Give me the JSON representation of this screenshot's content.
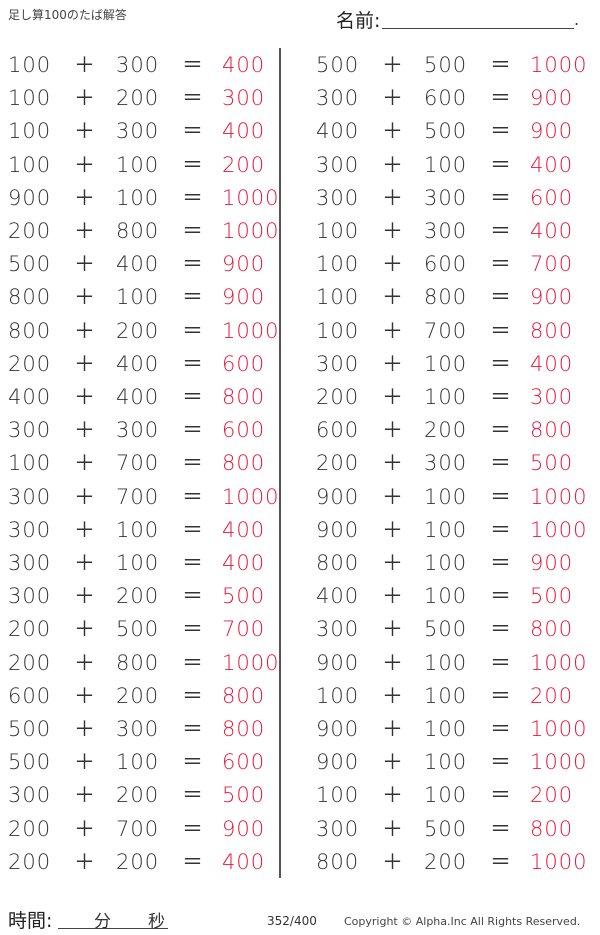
{
  "header": {
    "title": "足し算100のたば解答",
    "name_label": "名前:",
    "name_end": "."
  },
  "footer": {
    "time_label": "時間:",
    "minutes_label": "分",
    "seconds_label": "秒",
    "page": "352/400",
    "copyright": "Copyright ©  Alpha.Inc All Rights Reserved."
  },
  "colors": {
    "answer": "#e8173a",
    "text": "#333333"
  },
  "operators": {
    "plus": "＋",
    "equals": "＝"
  },
  "problems": {
    "left": [
      [
        "100",
        "300",
        "400"
      ],
      [
        "100",
        "200",
        "300"
      ],
      [
        "100",
        "300",
        "400"
      ],
      [
        "100",
        "100",
        "200"
      ],
      [
        "900",
        "100",
        "1000"
      ],
      [
        "200",
        "800",
        "1000"
      ],
      [
        "500",
        "400",
        "900"
      ],
      [
        "800",
        "100",
        "900"
      ],
      [
        "800",
        "200",
        "1000"
      ],
      [
        "200",
        "400",
        "600"
      ],
      [
        "400",
        "400",
        "800"
      ],
      [
        "300",
        "300",
        "600"
      ],
      [
        "100",
        "700",
        "800"
      ],
      [
        "300",
        "700",
        "1000"
      ],
      [
        "300",
        "100",
        "400"
      ],
      [
        "300",
        "100",
        "400"
      ],
      [
        "300",
        "200",
        "500"
      ],
      [
        "200",
        "500",
        "700"
      ],
      [
        "200",
        "800",
        "1000"
      ],
      [
        "600",
        "200",
        "800"
      ],
      [
        "500",
        "300",
        "800"
      ],
      [
        "500",
        "100",
        "600"
      ],
      [
        "300",
        "200",
        "500"
      ],
      [
        "200",
        "700",
        "900"
      ],
      [
        "200",
        "200",
        "400"
      ]
    ],
    "right": [
      [
        "500",
        "500",
        "1000"
      ],
      [
        "300",
        "600",
        "900"
      ],
      [
        "400",
        "500",
        "900"
      ],
      [
        "300",
        "100",
        "400"
      ],
      [
        "300",
        "300",
        "600"
      ],
      [
        "100",
        "300",
        "400"
      ],
      [
        "100",
        "600",
        "700"
      ],
      [
        "100",
        "800",
        "900"
      ],
      [
        "100",
        "700",
        "800"
      ],
      [
        "300",
        "100",
        "400"
      ],
      [
        "200",
        "100",
        "300"
      ],
      [
        "600",
        "200",
        "800"
      ],
      [
        "200",
        "300",
        "500"
      ],
      [
        "900",
        "100",
        "1000"
      ],
      [
        "900",
        "100",
        "1000"
      ],
      [
        "800",
        "100",
        "900"
      ],
      [
        "400",
        "100",
        "500"
      ],
      [
        "300",
        "500",
        "800"
      ],
      [
        "900",
        "100",
        "1000"
      ],
      [
        "100",
        "100",
        "200"
      ],
      [
        "900",
        "100",
        "1000"
      ],
      [
        "900",
        "100",
        "1000"
      ],
      [
        "100",
        "100",
        "200"
      ],
      [
        "300",
        "500",
        "800"
      ],
      [
        "800",
        "200",
        "1000"
      ]
    ]
  }
}
